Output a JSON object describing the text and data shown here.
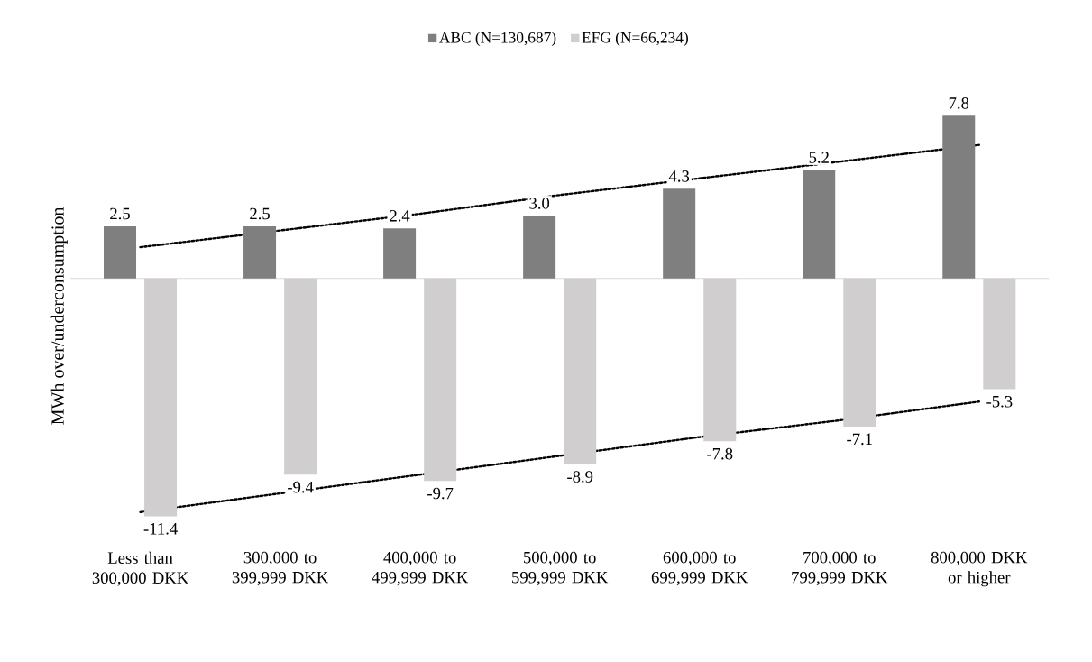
{
  "chart_data": {
    "type": "bar",
    "ylabel": "MWh over/underconsumption",
    "categories": [
      "Less than 300,000 DKK",
      "300,000 to 399,999 DKK",
      "400,000 to 499,999 DKK",
      "500,000 to 599,999 DKK",
      "600,000 to 699,999 DKK",
      "700,000 to 799,999 DKK",
      "800,000 DKK or higher"
    ],
    "series": [
      {
        "name": "ABC (N=130,687)",
        "color": "#7f7f7f",
        "values": [
          2.5,
          2.5,
          2.4,
          3.0,
          4.3,
          5.2,
          7.8
        ],
        "value_labels": [
          "2.5",
          "2.5",
          "2.4",
          "3.0",
          "4.3",
          "5.2",
          "7.8"
        ]
      },
      {
        "name": "EFG (N=66,234)",
        "color": "#d0cece",
        "values": [
          -11.4,
          -9.4,
          -9.7,
          -8.9,
          -7.8,
          -7.1,
          -5.3
        ],
        "value_labels": [
          "-11.4",
          "-9.4",
          "-9.7",
          "-8.9",
          "-7.8",
          "-7.1",
          "-5.3"
        ]
      },
      {
        "type": "line",
        "color": "#000000",
        "line_style": "dotted",
        "values": [
          1.5,
          2.3,
          3.1,
          4.0,
          4.8,
          5.6,
          6.4
        ]
      },
      {
        "type": "line",
        "color": "#000000",
        "line_style": "dotted",
        "values": [
          -11.2,
          -10.3,
          -9.4,
          -8.5,
          -7.6,
          -6.8,
          -5.9
        ]
      }
    ],
    "legend": "top",
    "grid": false
  }
}
